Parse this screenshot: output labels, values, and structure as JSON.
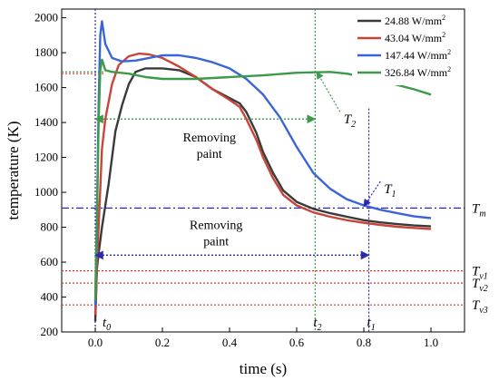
{
  "chart_data": {
    "type": "line",
    "xlabel": "time (s)",
    "ylabel": "temperature (K)",
    "xlim": [
      -0.1,
      1.1
    ],
    "ylim": [
      200,
      2050
    ],
    "x_ticks": [
      0.0,
      0.2,
      0.4,
      0.6,
      0.8,
      1.0
    ],
    "x_tick_labels": [
      "0.0",
      "0.2",
      "0.4",
      "0.6",
      "0.8",
      "1.0"
    ],
    "y_ticks": [
      200,
      400,
      600,
      800,
      1000,
      1200,
      1400,
      1600,
      1800,
      2000
    ],
    "y_tick_labels": [
      "200",
      "400",
      "600",
      "800",
      "1000",
      "1200",
      "1400",
      "1600",
      "1800",
      "2000"
    ],
    "grid": false,
    "legend_position": "top-right",
    "series": [
      {
        "name": "24.88 W/mm",
        "sup": "2",
        "color": "#3a3a3a",
        "points": [
          [
            0,
            260
          ],
          [
            0.005,
            560
          ],
          [
            0.01,
            650
          ],
          [
            0.02,
            800
          ],
          [
            0.04,
            1050
          ],
          [
            0.06,
            1350
          ],
          [
            0.08,
            1500
          ],
          [
            0.1,
            1620
          ],
          [
            0.12,
            1690
          ],
          [
            0.15,
            1710
          ],
          [
            0.2,
            1710
          ],
          [
            0.25,
            1700
          ],
          [
            0.3,
            1660
          ],
          [
            0.35,
            1590
          ],
          [
            0.4,
            1540
          ],
          [
            0.43,
            1510
          ],
          [
            0.45,
            1460
          ],
          [
            0.48,
            1340
          ],
          [
            0.5,
            1230
          ],
          [
            0.53,
            1110
          ],
          [
            0.56,
            1010
          ],
          [
            0.6,
            945
          ],
          [
            0.65,
            905
          ],
          [
            0.7,
            880
          ],
          [
            0.75,
            860
          ],
          [
            0.8,
            840
          ],
          [
            0.85,
            828
          ],
          [
            0.9,
            818
          ],
          [
            0.95,
            810
          ],
          [
            1.0,
            805
          ]
        ]
      },
      {
        "name": "43.04 W/mm",
        "sup": "2",
        "color": "#c8453a",
        "points": [
          [
            0,
            300
          ],
          [
            0.005,
            590
          ],
          [
            0.01,
            800
          ],
          [
            0.02,
            1250
          ],
          [
            0.03,
            1420
          ],
          [
            0.05,
            1620
          ],
          [
            0.07,
            1730
          ],
          [
            0.1,
            1780
          ],
          [
            0.13,
            1795
          ],
          [
            0.16,
            1790
          ],
          [
            0.2,
            1770
          ],
          [
            0.25,
            1720
          ],
          [
            0.3,
            1660
          ],
          [
            0.35,
            1590
          ],
          [
            0.4,
            1530
          ],
          [
            0.43,
            1490
          ],
          [
            0.45,
            1420
          ],
          [
            0.48,
            1300
          ],
          [
            0.5,
            1200
          ],
          [
            0.53,
            1080
          ],
          [
            0.56,
            985
          ],
          [
            0.6,
            925
          ],
          [
            0.65,
            885
          ],
          [
            0.7,
            860
          ],
          [
            0.75,
            840
          ],
          [
            0.8,
            825
          ],
          [
            0.85,
            813
          ],
          [
            0.9,
            803
          ],
          [
            0.95,
            796
          ],
          [
            1.0,
            790
          ]
        ]
      },
      {
        "name": "147.44 W/mm",
        "sup": "2",
        "color": "#3a64d8",
        "points": [
          [
            0,
            350
          ],
          [
            0.005,
            800
          ],
          [
            0.01,
            1500
          ],
          [
            0.015,
            1900
          ],
          [
            0.02,
            1980
          ],
          [
            0.03,
            1850
          ],
          [
            0.05,
            1770
          ],
          [
            0.08,
            1750
          ],
          [
            0.12,
            1755
          ],
          [
            0.16,
            1770
          ],
          [
            0.2,
            1785
          ],
          [
            0.25,
            1785
          ],
          [
            0.3,
            1770
          ],
          [
            0.35,
            1745
          ],
          [
            0.4,
            1710
          ],
          [
            0.45,
            1650
          ],
          [
            0.5,
            1560
          ],
          [
            0.55,
            1430
          ],
          [
            0.6,
            1260
          ],
          [
            0.65,
            1110
          ],
          [
            0.7,
            1020
          ],
          [
            0.75,
            960
          ],
          [
            0.8,
            925
          ],
          [
            0.85,
            900
          ],
          [
            0.9,
            880
          ],
          [
            0.95,
            862
          ],
          [
            1.0,
            852
          ]
        ]
      },
      {
        "name": "326.84 W/mm",
        "sup": "2",
        "color": "#3c9a48",
        "points": [
          [
            0,
            380
          ],
          [
            0.005,
            850
          ],
          [
            0.01,
            1400
          ],
          [
            0.015,
            1700
          ],
          [
            0.02,
            1760
          ],
          [
            0.03,
            1700
          ],
          [
            0.05,
            1690
          ],
          [
            0.1,
            1680
          ],
          [
            0.15,
            1660
          ],
          [
            0.2,
            1650
          ],
          [
            0.3,
            1650
          ],
          [
            0.4,
            1660
          ],
          [
            0.5,
            1670
          ],
          [
            0.6,
            1685
          ],
          [
            0.7,
            1690
          ],
          [
            0.75,
            1680
          ],
          [
            0.8,
            1660
          ],
          [
            0.85,
            1640
          ],
          [
            0.9,
            1615
          ],
          [
            0.95,
            1590
          ],
          [
            1.0,
            1560
          ]
        ]
      }
    ],
    "reference_lines": [
      {
        "type": "h",
        "value": 910,
        "color": "#2a2ab0",
        "style": "dashdot",
        "label": "T",
        "sub": "m",
        "label_side": "right"
      },
      {
        "type": "h",
        "value": 550,
        "color": "#d43a2a",
        "style": "dotted",
        "label": "T",
        "sub": "v1",
        "label_side": "right"
      },
      {
        "type": "h",
        "value": 480,
        "color": "#d43a2a",
        "style": "dotted",
        "label": "T",
        "sub": "v2",
        "label_side": "right"
      },
      {
        "type": "h",
        "value": 355,
        "color": "#d43a2a",
        "style": "dotted",
        "label": "T",
        "sub": "v3",
        "label_side": "right"
      },
      {
        "type": "h",
        "value": 1690,
        "color": "#3c9a48",
        "style": "dotted",
        "label": "",
        "sub": ""
      },
      {
        "type": "h",
        "value": 1680,
        "color": "#d43a2a",
        "style": "dotted",
        "label": "",
        "sub": ""
      },
      {
        "type": "v",
        "value": 0.0,
        "color": "#2a2ab0",
        "style": "dotted",
        "label": "t",
        "sub": "0"
      },
      {
        "type": "v",
        "value": 0.655,
        "color": "#3c9a48",
        "style": "dotted",
        "label": "t",
        "sub": "2"
      },
      {
        "type": "v",
        "value": 0.815,
        "color": "#2a2ab0",
        "style": "dotted",
        "label": "t",
        "sub": "1"
      }
    ],
    "arrows": [
      {
        "from": [
          0.0,
          1420
        ],
        "to": [
          0.655,
          1420
        ],
        "color": "#3c9a48",
        "label": [
          "Removing",
          "paint"
        ],
        "label_at": [
          0.34,
          1290
        ]
      },
      {
        "from": [
          0.0,
          640
        ],
        "to": [
          0.815,
          640
        ],
        "color": "#2a2ab0",
        "label": [
          "Removing",
          "paint"
        ],
        "label_at": [
          0.36,
          790
        ]
      }
    ],
    "annotations": [
      {
        "text": "T",
        "sub": "2",
        "color": "#000",
        "at": [
          0.74,
          1420
        ],
        "arrow_to": [
          0.66,
          1690
        ],
        "arrow_color": "#3c9a48"
      },
      {
        "text": "T",
        "sub": "1",
        "color": "#000",
        "at": [
          0.86,
          1020
        ],
        "arrow_to": [
          0.8,
          920
        ],
        "arrow_color": "#2a2ab0"
      }
    ]
  }
}
